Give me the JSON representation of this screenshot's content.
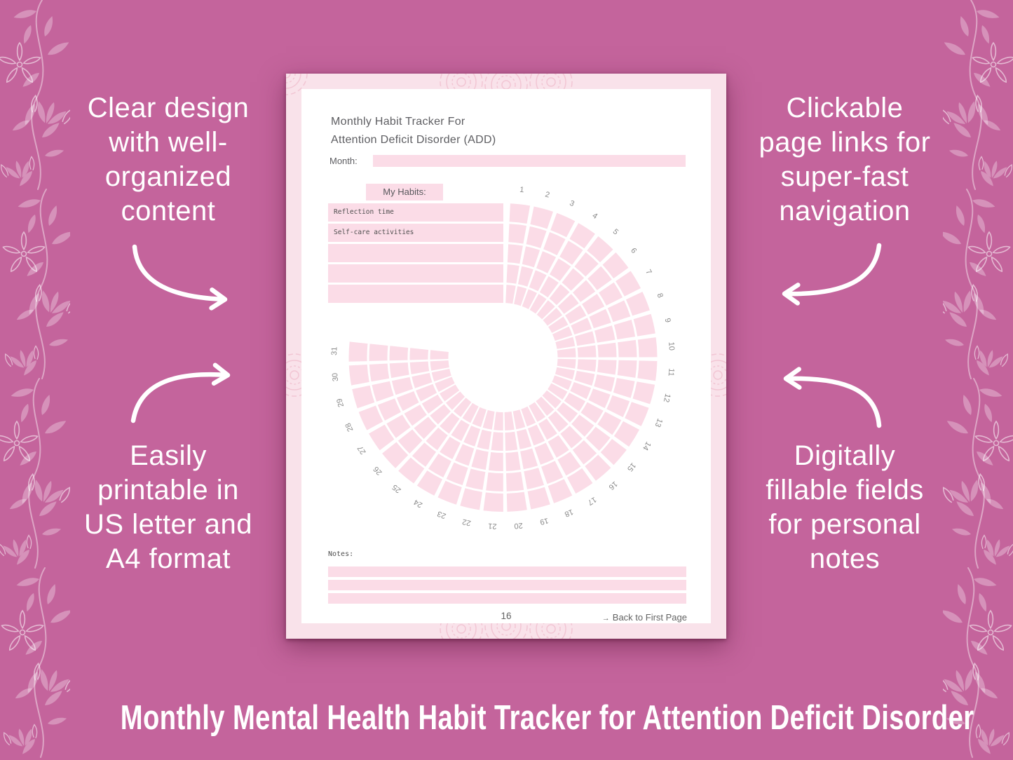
{
  "headline": "Monthly Mental Health Habit Tracker for Attention Deficit Disorder",
  "callouts": {
    "top_left": {
      "lines": [
        "Clear design",
        "with well-",
        "organized",
        "content"
      ]
    },
    "top_right": {
      "lines": [
        "Clickable",
        "page links for",
        "super-fast",
        "navigation"
      ]
    },
    "bottom_left": {
      "lines": [
        "Easily",
        "printable in",
        "US letter and",
        "A4 format"
      ]
    },
    "bottom_right": {
      "lines": [
        "Digitally",
        "fillable fields",
        "for personal",
        "notes"
      ]
    }
  },
  "document": {
    "title_line1": "Monthly Habit Tracker For",
    "title_line2": "Attention Deficit Disorder (ADD)",
    "month_label": "Month:",
    "month_value": "",
    "habits_header": "My Habits:",
    "habit_rows": [
      "Reflection time",
      "Self-care activities",
      "",
      "",
      ""
    ],
    "notes_label": "Notes:",
    "notes_lines": [
      "",
      "",
      ""
    ],
    "page_number": "16",
    "back_link_icon": "→",
    "back_link_label": "Back to First Page",
    "chart": {
      "type": "radial-habit-tracker",
      "rings": 5,
      "day_labels": [
        1,
        2,
        3,
        4,
        5,
        6,
        7,
        8,
        9,
        10,
        11,
        12,
        13,
        14,
        15,
        16,
        17,
        18,
        19,
        20,
        21,
        22,
        23,
        24,
        25,
        26,
        27,
        28,
        29,
        30,
        31
      ]
    }
  },
  "colors": {
    "background": "#c4649c",
    "page_border_pink": "#f9e2ea",
    "field_pink": "#fbdce7",
    "mandala_pink": "#f2c6d4",
    "doc_text": "#5d5d61",
    "mono_text": "#4f4f4f",
    "day_number": "#8a8a8a",
    "callout_text": "#ffffff"
  }
}
